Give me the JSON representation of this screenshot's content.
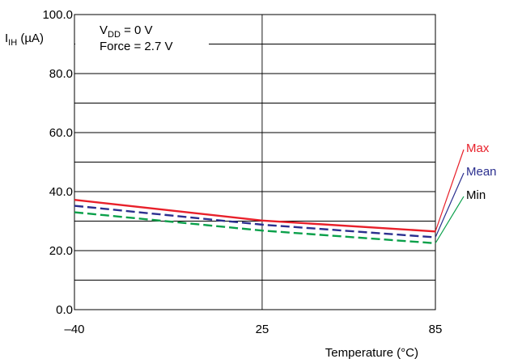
{
  "chart_data": {
    "type": "line",
    "title": "",
    "xlabel": "Temperature (°C)",
    "ylabel": {
      "main": "I",
      "sub": "IH",
      "unit": " (µA)"
    },
    "x": [
      -40,
      25,
      85
    ],
    "x_tick_labels": [
      "–40",
      "25",
      "85"
    ],
    "ylim": [
      0,
      100
    ],
    "y_ticks": [
      0,
      20,
      40,
      60,
      80,
      100
    ],
    "y_tick_labels": [
      "0.0",
      "20.0",
      "40.0",
      "60.0",
      "80.0",
      "100.0"
    ],
    "grid": true,
    "conditions": [
      {
        "main": "V",
        "sub": "DD",
        "rest": " = 0 V"
      },
      {
        "main": "Force = 2.7 V",
        "sub": "",
        "rest": ""
      }
    ],
    "series": [
      {
        "name": "Max",
        "values": [
          37.2,
          30.2,
          26.5
        ],
        "color": "#e8202a",
        "dash": "solid"
      },
      {
        "name": "Mean",
        "values": [
          35.2,
          28.8,
          24.5
        ],
        "color": "#2b2f8f",
        "dash": "dashed"
      },
      {
        "name": "Min",
        "values": [
          33.0,
          26.8,
          22.5
        ],
        "color": "#0aa04a",
        "dash": "dashed"
      }
    ],
    "legend_text_colors": [
      "#e8202a",
      "#2b2f8f",
      "#000000"
    ]
  }
}
